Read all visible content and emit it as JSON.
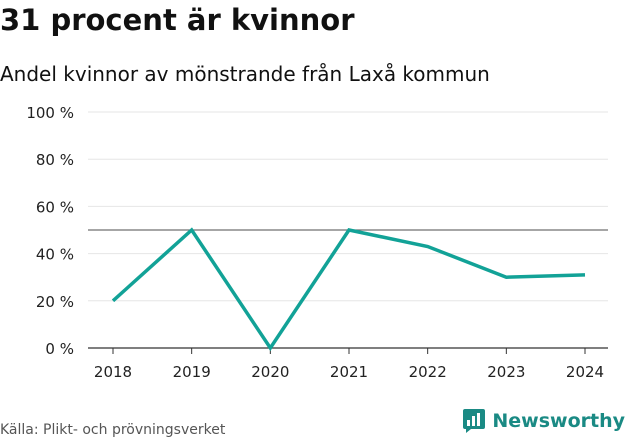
{
  "header": {
    "title": "31 procent är kvinnor",
    "subtitle": "Andel kvinnor av mönstrande från Laxå kommun"
  },
  "footer": {
    "source": "Källa: Plikt- och prövningsverket",
    "brand": "Newsworthy",
    "brand_icon": "newsworthy-logo-icon"
  },
  "colors": {
    "line": "#12a297",
    "grid": "#e6e6e6",
    "reference_line": "#707070",
    "axis_text": "#222222",
    "brand": "#1a8a84"
  },
  "chart_data": {
    "type": "line",
    "title": "31 procent är kvinnor",
    "subtitle": "Andel kvinnor av mönstrande från Laxå kommun",
    "x": [
      "2018",
      "2019",
      "2020",
      "2021",
      "2022",
      "2023",
      "2024"
    ],
    "series": [
      {
        "values": [
          20,
          50,
          0,
          50,
          43,
          30,
          31
        ]
      }
    ],
    "reference_line": 50,
    "ylim": [
      0,
      100
    ],
    "y_ticks": [
      0,
      20,
      40,
      60,
      80,
      100
    ],
    "y_tick_labels": [
      "0 %",
      "20 %",
      "40 %",
      "60 %",
      "80 %",
      "100 %"
    ],
    "grid": true,
    "legend": "none"
  }
}
